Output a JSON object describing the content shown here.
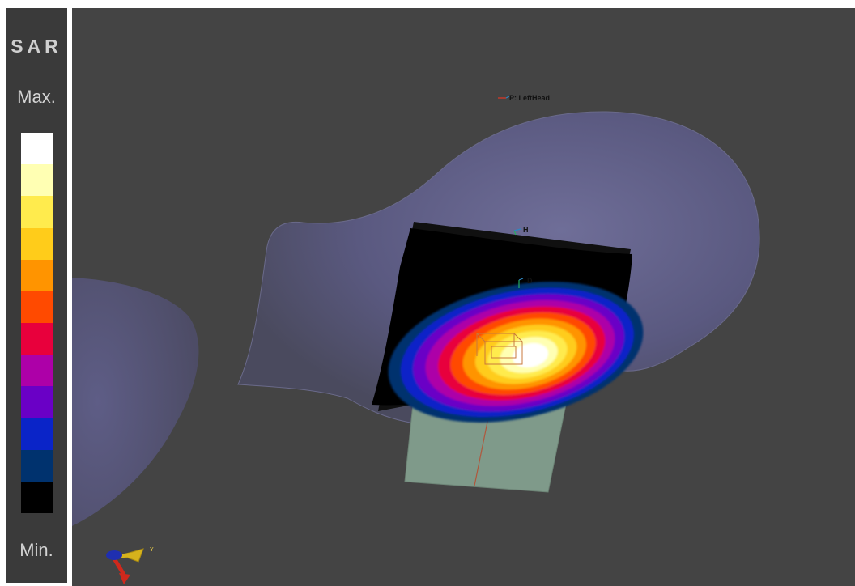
{
  "legend": {
    "title": "SAR",
    "max_label": "Max.",
    "min_label": "Min.",
    "colors": [
      "#ffffff",
      "#ffffb3",
      "#ffeb4d",
      "#ffcc1a",
      "#ff9400",
      "#ff4a00",
      "#e8003c",
      "#ad00a8",
      "#6a00c6",
      "#0a24c8",
      "#00326e",
      "#000000"
    ]
  },
  "scene": {
    "labels": {
      "point": "P: LeftHead",
      "h_marker": "H",
      "d_marker": "D",
      "axis_y": "Y"
    },
    "colors": {
      "background": "#444444",
      "phantom": "#5d5c80",
      "device": "#7e9a8a",
      "scan_plane": "#000000"
    }
  }
}
